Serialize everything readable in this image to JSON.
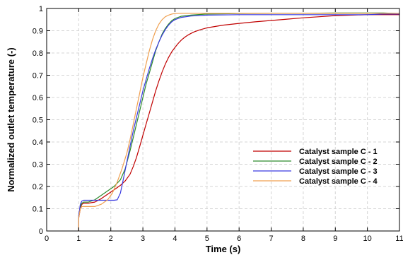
{
  "chart_data": {
    "type": "line",
    "title": "",
    "xlabel": "Time (s)",
    "ylabel": "Normalized outlet temperature (-)",
    "xlim": [
      0,
      11
    ],
    "ylim": [
      0,
      1
    ],
    "x_ticks": [
      0,
      1,
      2,
      3,
      4,
      5,
      6,
      7,
      8,
      9,
      10,
      11
    ],
    "y_ticks": [
      0,
      0.1,
      0.2,
      0.3,
      0.4,
      0.5,
      0.6,
      0.7,
      0.8,
      0.9,
      1
    ],
    "y_tick_labels": [
      "0",
      "0.1",
      "0.2",
      "0.3",
      "0.4",
      "0.5",
      "0.6",
      "0.7",
      "0.8",
      "0.9",
      "1"
    ],
    "grid": true,
    "legend_position": "lower-right",
    "series": [
      {
        "name": "Catalyst sample C - 1",
        "color": "#c00000",
        "x": [
          1.0,
          1.0,
          1.05,
          1.08,
          1.1,
          1.15,
          1.3,
          1.5,
          1.7,
          1.9,
          2.1,
          2.3,
          2.45,
          2.6,
          2.7,
          2.8,
          2.9,
          3.0,
          3.1,
          3.2,
          3.3,
          3.4,
          3.5,
          3.6,
          3.7,
          3.8,
          3.9,
          4.0,
          4.1,
          4.2,
          4.3,
          4.4,
          4.5,
          4.6,
          4.8,
          5.0,
          5.5,
          6.0,
          6.5,
          7.0,
          7.5,
          8.0,
          8.5,
          9.0,
          9.5,
          10.0,
          10.5,
          11.0
        ],
        "y": [
          0.0,
          0.06,
          0.1,
          0.115,
          0.12,
          0.125,
          0.125,
          0.13,
          0.145,
          0.165,
          0.185,
          0.205,
          0.225,
          0.255,
          0.29,
          0.33,
          0.38,
          0.43,
          0.48,
          0.53,
          0.58,
          0.63,
          0.675,
          0.715,
          0.75,
          0.78,
          0.805,
          0.825,
          0.843,
          0.858,
          0.87,
          0.88,
          0.888,
          0.895,
          0.905,
          0.913,
          0.925,
          0.933,
          0.94,
          0.946,
          0.952,
          0.958,
          0.963,
          0.968,
          0.97,
          0.972,
          0.972,
          0.972
        ]
      },
      {
        "name": "Catalyst sample C - 2",
        "color": "#2e8b2e",
        "x": [
          1.0,
          1.0,
          1.05,
          1.1,
          1.15,
          1.3,
          1.5,
          1.7,
          1.9,
          2.1,
          2.3,
          2.45,
          2.6,
          2.7,
          2.8,
          2.9,
          3.0,
          3.1,
          3.2,
          3.3,
          3.4,
          3.5,
          3.6,
          3.7,
          3.8,
          3.9,
          4.0,
          4.2,
          4.5,
          5.0,
          6.0,
          7.0,
          8.0,
          9.0,
          10.0,
          10.5,
          11.0
        ],
        "y": [
          0.0,
          0.07,
          0.11,
          0.125,
          0.13,
          0.13,
          0.14,
          0.16,
          0.18,
          0.2,
          0.23,
          0.28,
          0.36,
          0.42,
          0.48,
          0.54,
          0.6,
          0.66,
          0.71,
          0.76,
          0.81,
          0.85,
          0.885,
          0.91,
          0.93,
          0.945,
          0.955,
          0.965,
          0.97,
          0.975,
          0.977,
          0.978,
          0.978,
          0.98,
          0.98,
          0.98,
          0.977
        ]
      },
      {
        "name": "Catalyst sample C - 3",
        "color": "#3a3ae0",
        "x": [
          1.0,
          1.0,
          1.05,
          1.1,
          1.15,
          1.3,
          1.5,
          1.7,
          1.9,
          2.1,
          2.2,
          2.3,
          2.4,
          2.5,
          2.6,
          2.7,
          2.8,
          2.9,
          3.0,
          3.1,
          3.2,
          3.3,
          3.4,
          3.5,
          3.6,
          3.7,
          3.8,
          3.9,
          4.0,
          4.2,
          4.5,
          5.0,
          6.0,
          7.0,
          8.0,
          9.0,
          10.0,
          10.5,
          11.0
        ],
        "y": [
          0.0,
          0.07,
          0.12,
          0.135,
          0.138,
          0.138,
          0.138,
          0.138,
          0.138,
          0.138,
          0.14,
          0.17,
          0.24,
          0.31,
          0.38,
          0.45,
          0.51,
          0.57,
          0.63,
          0.68,
          0.73,
          0.775,
          0.815,
          0.85,
          0.88,
          0.905,
          0.925,
          0.94,
          0.95,
          0.96,
          0.966,
          0.97,
          0.972,
          0.972,
          0.972,
          0.972,
          0.972,
          0.975,
          0.975
        ]
      },
      {
        "name": "Catalyst sample C - 4",
        "color": "#f0a050",
        "x": [
          1.0,
          1.0,
          1.05,
          1.1,
          1.15,
          1.3,
          1.5,
          1.7,
          1.9,
          2.05,
          2.2,
          2.35,
          2.5,
          2.6,
          2.7,
          2.8,
          2.9,
          3.0,
          3.1,
          3.2,
          3.3,
          3.4,
          3.5,
          3.6,
          3.7,
          3.8,
          3.9,
          4.0,
          4.2,
          4.5,
          5.0,
          6.0,
          7.0,
          8.0,
          9.0,
          10.0,
          10.5,
          11.0
        ],
        "y": [
          0.0,
          0.06,
          0.1,
          0.11,
          0.11,
          0.11,
          0.11,
          0.12,
          0.14,
          0.17,
          0.22,
          0.28,
          0.35,
          0.41,
          0.48,
          0.55,
          0.62,
          0.69,
          0.75,
          0.81,
          0.86,
          0.9,
          0.93,
          0.95,
          0.963,
          0.97,
          0.975,
          0.977,
          0.978,
          0.978,
          0.978,
          0.978,
          0.978,
          0.978,
          0.978,
          0.978,
          0.978,
          0.978
        ]
      }
    ]
  }
}
